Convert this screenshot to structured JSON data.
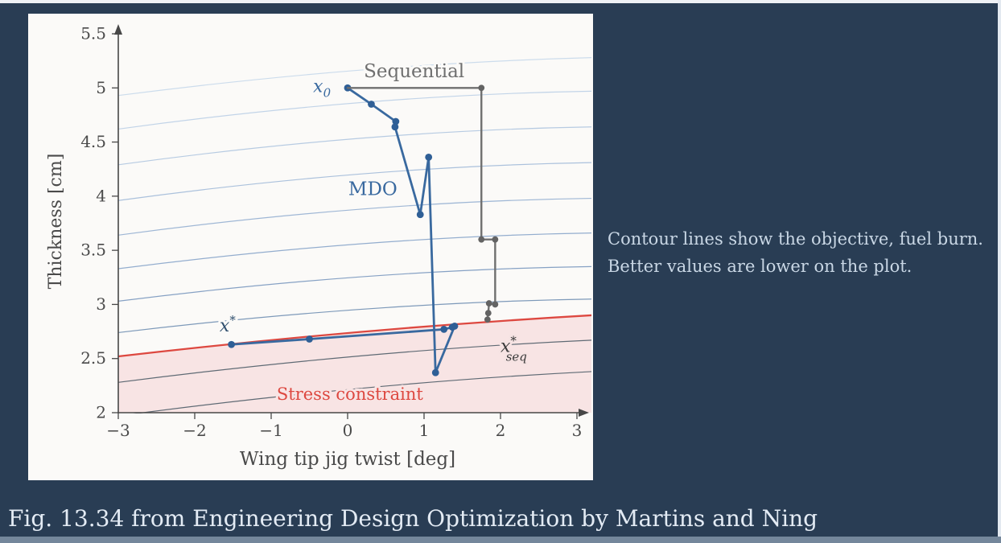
{
  "slide": {
    "side_note_line1": "Contour lines show the objective, fuel burn.",
    "side_note_line2": "Better values are lower on the plot.",
    "caption": "Fig. 13.34 from Engineering Design Optimization by Martins and Ning"
  },
  "colors": {
    "background": "#293d54",
    "panel": "#fbfaf8",
    "bottom_bar": "#74879b",
    "side_note_text": "#c9d7e5",
    "caption_text": "#e3ebf4",
    "axis": "#474747",
    "tick_text": "#4a4a4a",
    "mdo_blue": "#39699f",
    "sequential_gray": "#6f6f6f",
    "constraint_red": "#dd4840",
    "infeasible_pink": "#f8e4e4"
  },
  "chart_data": {
    "type": "line",
    "title": "",
    "xlabel": "Wing tip jig twist [deg]",
    "ylabel": "Thickness [cm]",
    "xlim": [
      -3,
      3
    ],
    "ylim": [
      2,
      5.5
    ],
    "grid": false,
    "x_ticks": [
      {
        "v": -3,
        "label": "−3"
      },
      {
        "v": -2,
        "label": "−2"
      },
      {
        "v": -1,
        "label": "−1"
      },
      {
        "v": 0,
        "label": "0"
      },
      {
        "v": 1,
        "label": "1"
      },
      {
        "v": 2,
        "label": "2"
      },
      {
        "v": 3,
        "label": "3"
      }
    ],
    "y_ticks": [
      {
        "v": 2,
        "label": "2"
      },
      {
        "v": 2.5,
        "label": "2.5"
      },
      {
        "v": 3,
        "label": "3"
      },
      {
        "v": 3.5,
        "label": "3.5"
      },
      {
        "v": 4,
        "label": "4"
      },
      {
        "v": 4.5,
        "label": "4.5"
      },
      {
        "v": 5,
        "label": "5"
      },
      {
        "v": 5.5,
        "label": "5.5"
      }
    ],
    "series": [
      {
        "name": "MDO",
        "color": "#39699f",
        "dot_color": "#2f5f96",
        "width": 2.8,
        "dot_r": 4.4,
        "points": [
          [
            0.0,
            5.0
          ],
          [
            0.31,
            4.85
          ],
          [
            0.63,
            4.69
          ],
          [
            0.62,
            4.64
          ],
          [
            0.95,
            3.83
          ],
          [
            1.06,
            4.36
          ],
          [
            1.15,
            2.37
          ],
          [
            1.4,
            2.8
          ],
          [
            1.37,
            2.79
          ],
          [
            1.26,
            2.77
          ],
          [
            -0.5,
            2.68
          ],
          [
            -1.52,
            2.63
          ]
        ]
      },
      {
        "name": "Sequential",
        "color": "#6f6f6f",
        "dot_color": "#636363",
        "width": 2.4,
        "dot_r": 3.9,
        "points": [
          [
            0.0,
            5.0
          ],
          [
            1.75,
            5.0
          ],
          [
            1.75,
            3.6
          ],
          [
            1.93,
            3.6
          ],
          [
            1.93,
            3.0
          ],
          [
            1.85,
            3.01
          ],
          [
            1.84,
            2.92
          ],
          [
            1.83,
            2.86
          ]
        ]
      }
    ],
    "constraint": {
      "label": "Stress constraint",
      "color": "#dd4840",
      "fill": "#f8e4e4",
      "curve": [
        [
          -3,
          2.52
        ],
        [
          0.2,
          2.78
        ],
        [
          3.2,
          2.9
        ]
      ]
    },
    "contours": {
      "note": "objective (fuel burn) contours, better values lower",
      "levels": [
        {
          "left": 4.93,
          "right": 5.28,
          "bow": 0.12,
          "color": "#ccdcec"
        },
        {
          "left": 4.62,
          "right": 4.97,
          "bow": 0.14,
          "color": "#c2d4e8"
        },
        {
          "left": 4.29,
          "right": 4.64,
          "bow": 0.14,
          "color": "#b7cbe2"
        },
        {
          "left": 3.96,
          "right": 4.31,
          "bow": 0.14,
          "color": "#abc1dc"
        },
        {
          "left": 3.64,
          "right": 3.98,
          "bow": 0.14,
          "color": "#9fb7d5"
        },
        {
          "left": 3.33,
          "right": 3.66,
          "bow": 0.13,
          "color": "#93adce"
        },
        {
          "left": 3.03,
          "right": 3.35,
          "bow": 0.13,
          "color": "#86a1c4"
        },
        {
          "left": 2.74,
          "right": 3.05,
          "bow": 0.12,
          "color": "#7d99b9"
        },
        {
          "left": 2.28,
          "right": 2.67,
          "bow": 0.1,
          "color": "#5f6a74"
        },
        {
          "left": 1.97,
          "right": 2.38,
          "bow": 0.1,
          "color": "#5f6a74"
        }
      ]
    },
    "annotations": [
      {
        "id": "sequential-label",
        "text": "Sequential",
        "x": 0.87,
        "y": 5.1,
        "color": "#6f6f6f",
        "size": 23,
        "anchor": "middle",
        "italic": false,
        "halo": "#fbfaf8"
      },
      {
        "id": "mdo-label",
        "text": "MDO",
        "x": 0.33,
        "y": 4.01,
        "color": "#39699f",
        "size": 23,
        "anchor": "middle",
        "italic": false,
        "halo": "#fbfaf8"
      },
      {
        "id": "stress-constraint-label",
        "text": "Stress constraint",
        "x": 0.03,
        "y": 2.12,
        "color": "#dd4840",
        "size": 21,
        "anchor": "middle",
        "italic": false,
        "halo": "#f8e4e4"
      },
      {
        "id": "x0-label",
        "text": "x",
        "sub": "0",
        "x": -0.22,
        "y": 4.96,
        "color": "#39699f",
        "size": 22,
        "anchor": "end",
        "italic": true,
        "halo": "#fbfaf8"
      },
      {
        "id": "x-star-label",
        "text": "x",
        "sup": "*",
        "x": -1.57,
        "y": 2.75,
        "color": "#2f4f6e",
        "size": 22,
        "anchor": "middle",
        "italic": true,
        "halo": "#fbfaf8"
      },
      {
        "id": "x-seq-label",
        "text": "x",
        "sup": "*",
        "sub": "seq",
        "x": 2.0,
        "y": 2.56,
        "color": "#3a3a3a",
        "size": 22,
        "anchor": "start",
        "italic": true,
        "halo": "#f6e3e3"
      }
    ]
  }
}
